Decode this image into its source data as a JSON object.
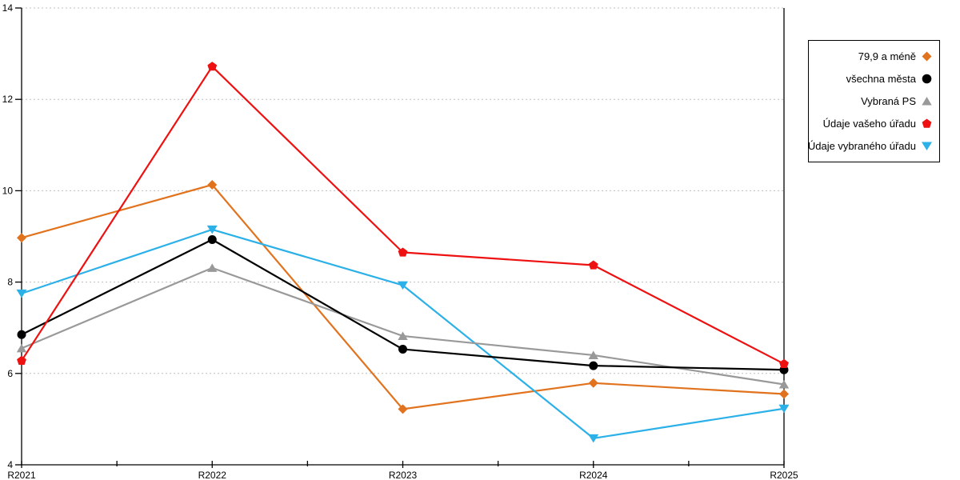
{
  "chart_data": {
    "type": "line",
    "title": "",
    "xlabel": "",
    "ylabel": "",
    "categories": [
      "R2021",
      "R2022",
      "R2023",
      "R2024",
      "R2025"
    ],
    "series": [
      {
        "name": "79,9 a méně",
        "marker": "diamond",
        "color": "#E1731E",
        "values": [
          8.97,
          10.13,
          5.22,
          5.79,
          5.55
        ]
      },
      {
        "name": "všechna města",
        "marker": "circle",
        "color": "#000000",
        "values": [
          6.85,
          8.93,
          6.53,
          6.17,
          6.08
        ]
      },
      {
        "name": "Vybraná PS",
        "marker": "triangle-up",
        "color": "#999999",
        "values": [
          6.55,
          8.31,
          6.82,
          6.4,
          5.76
        ]
      },
      {
        "name": "Údaje vašeho úřadu",
        "marker": "pentagon",
        "color": "#EE1111",
        "values": [
          6.28,
          12.72,
          8.65,
          8.37,
          6.21
        ]
      },
      {
        "name": "Údaje vybraného úřadu",
        "marker": "triangle-down",
        "color": "#2BB0E8",
        "values": [
          7.75,
          9.15,
          7.93,
          4.58,
          5.23
        ]
      }
    ],
    "z_order": [
      0,
      4,
      2,
      1,
      3
    ],
    "ylim": [
      4,
      14
    ],
    "yticks": [
      4,
      6,
      8,
      10,
      12,
      14
    ],
    "grid": "horizontal-dotted",
    "grid_color": "#BFBFBF",
    "axis_color": "#000000",
    "minor_x_ticks": "between-categories",
    "legend_position": "right"
  }
}
